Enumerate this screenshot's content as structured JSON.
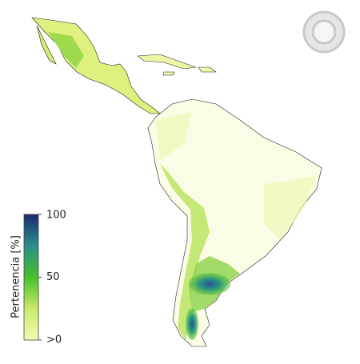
{
  "legend": {
    "title": "Pertenencia [%]",
    "ticks": [
      100,
      50,
      {
        "value": 0,
        "label": ">0"
      }
    ]
  }
}
